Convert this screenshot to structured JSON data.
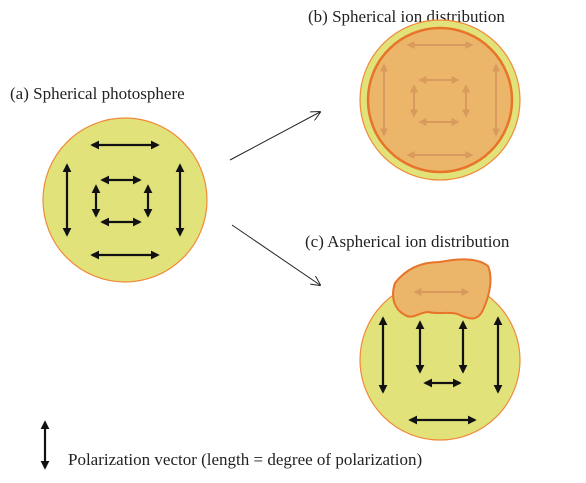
{
  "labels": {
    "a": "(a) Spherical photosphere",
    "b": "(b) Spherical ion distribution",
    "c": "(c) Aspherical ion distribution"
  },
  "legend": {
    "text": "Polarization vector (length = degree of polarization)"
  }
}
